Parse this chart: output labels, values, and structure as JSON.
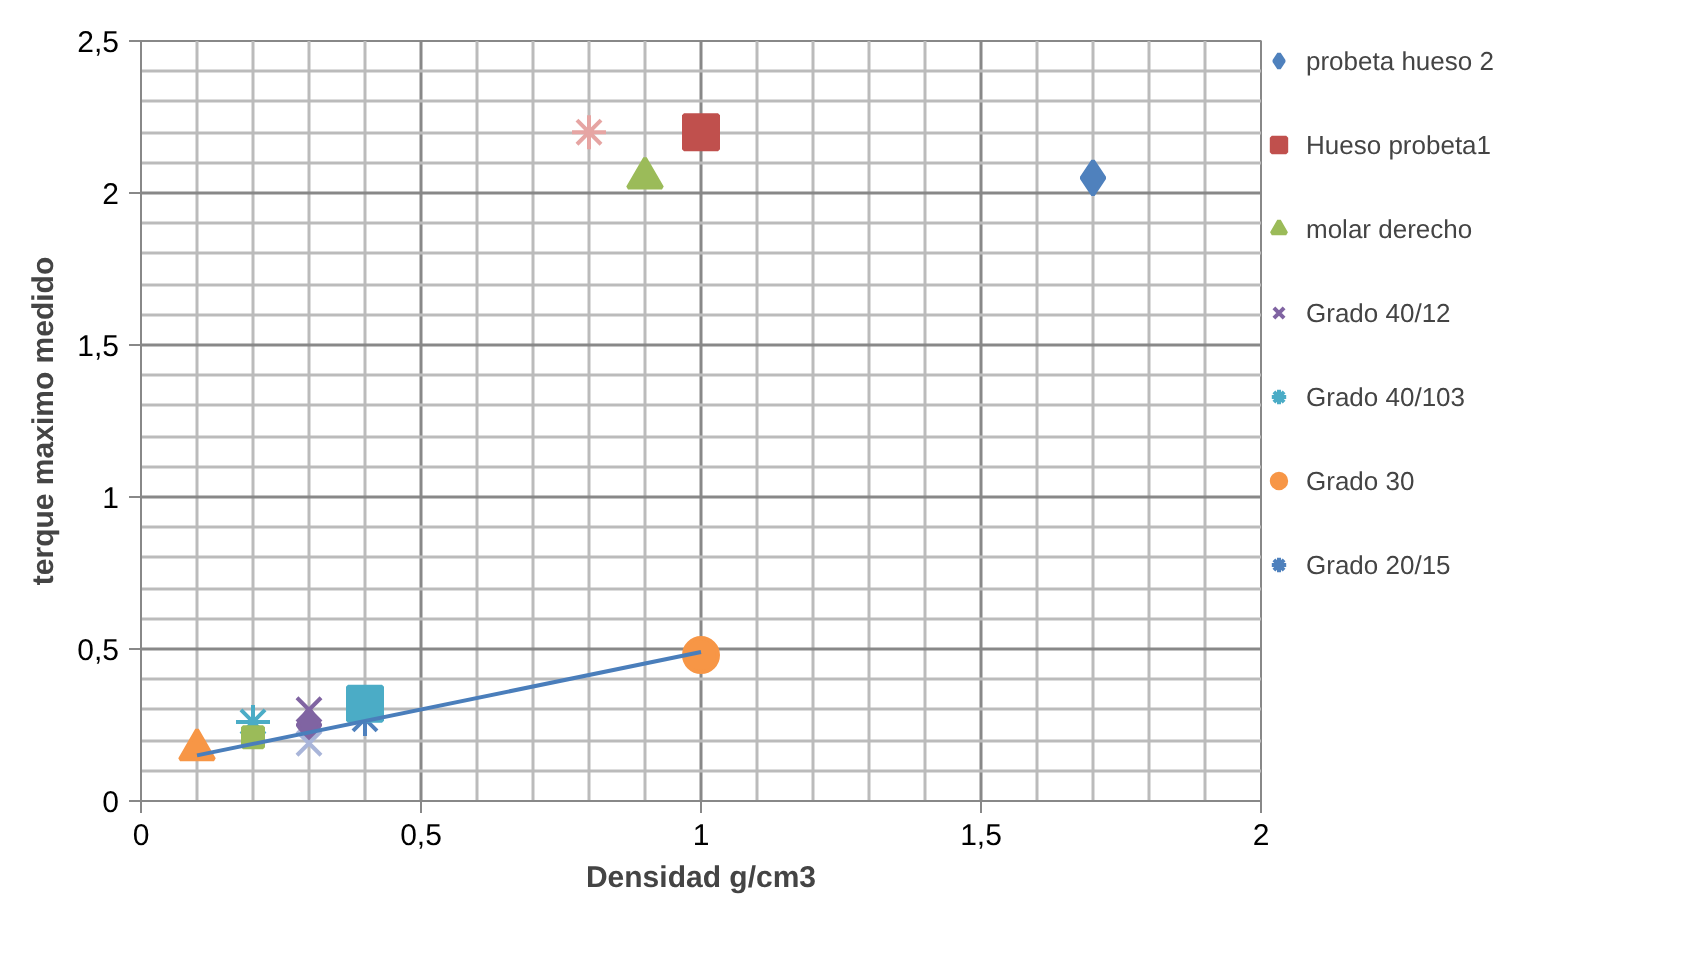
{
  "chart_data": {
    "type": "scatter",
    "xlabel": "Densidad g/cm3",
    "ylabel": "terque maximo medido",
    "xlim": [
      0,
      2
    ],
    "ylim": [
      0,
      2.5
    ],
    "xticks": [
      0,
      {
        "value": 0.5,
        "label": "0,5"
      },
      1,
      {
        "value": 1.5,
        "label": "1,5"
      },
      2
    ],
    "yticks": [
      0,
      {
        "value": 0.5,
        "label": "0,5"
      },
      1,
      {
        "value": 1.5,
        "label": "1,5"
      },
      2,
      {
        "value": 2.5,
        "label": "2,5"
      }
    ],
    "grid": true,
    "legend": "right",
    "series": [
      {
        "name": "probeta hueso 2",
        "color": "#4f81bd",
        "marker": "diamond",
        "x": [
          1.7
        ],
        "values": [
          2.05
        ]
      },
      {
        "name": "Hueso probeta1",
        "color": "#c0504d",
        "marker": "square",
        "x": [
          1.0
        ],
        "values": [
          2.2
        ]
      },
      {
        "name": "molar derecho",
        "color": "#9bbb59",
        "marker": "triangle",
        "x": [
          0.9
        ],
        "values": [
          2.05
        ]
      },
      {
        "name": "Grado 40/12",
        "color": "#8064a2",
        "marker": "x",
        "x": [
          0.3
        ],
        "values": [
          0.3
        ]
      },
      {
        "name": "Grado 40/103",
        "color": "#4bacc6",
        "marker": "cross",
        "x": [
          0.2
        ],
        "values": [
          0.26
        ]
      },
      {
        "name": "Grado 30",
        "color": "#f79646",
        "marker": "circle",
        "x": [
          1.0
        ],
        "values": [
          0.48
        ]
      },
      {
        "name": "Grado 20/15",
        "color": "#4f81bd",
        "marker": "cross",
        "x": [
          0.4
        ],
        "values": [
          0.27
        ]
      },
      {
        "color": "#e6a5a3",
        "marker": "cross",
        "x": [
          0.8
        ],
        "values": [
          2.2
        ]
      },
      {
        "color": "#f79646",
        "marker": "triangle",
        "x": [
          0.1
        ],
        "values": [
          0.17
        ]
      },
      {
        "color": "#9bbb59",
        "marker": "square",
        "x": [
          0.2
        ],
        "values": [
          0.21
        ]
      },
      {
        "color": "#8064a2",
        "marker": "diamond",
        "x": [
          0.3
        ],
        "values": [
          0.25
        ]
      },
      {
        "color": "#a9b5d9",
        "marker": "x",
        "x": [
          0.3
        ],
        "values": [
          0.19
        ]
      },
      {
        "color": "#4bacc6",
        "marker": "square",
        "x": [
          0.4
        ],
        "values": [
          0.32
        ]
      },
      {
        "type": "line",
        "color": "#4a7ebb",
        "x": [
          0.1,
          1.0
        ],
        "values": [
          0.15,
          0.49
        ]
      }
    ]
  }
}
